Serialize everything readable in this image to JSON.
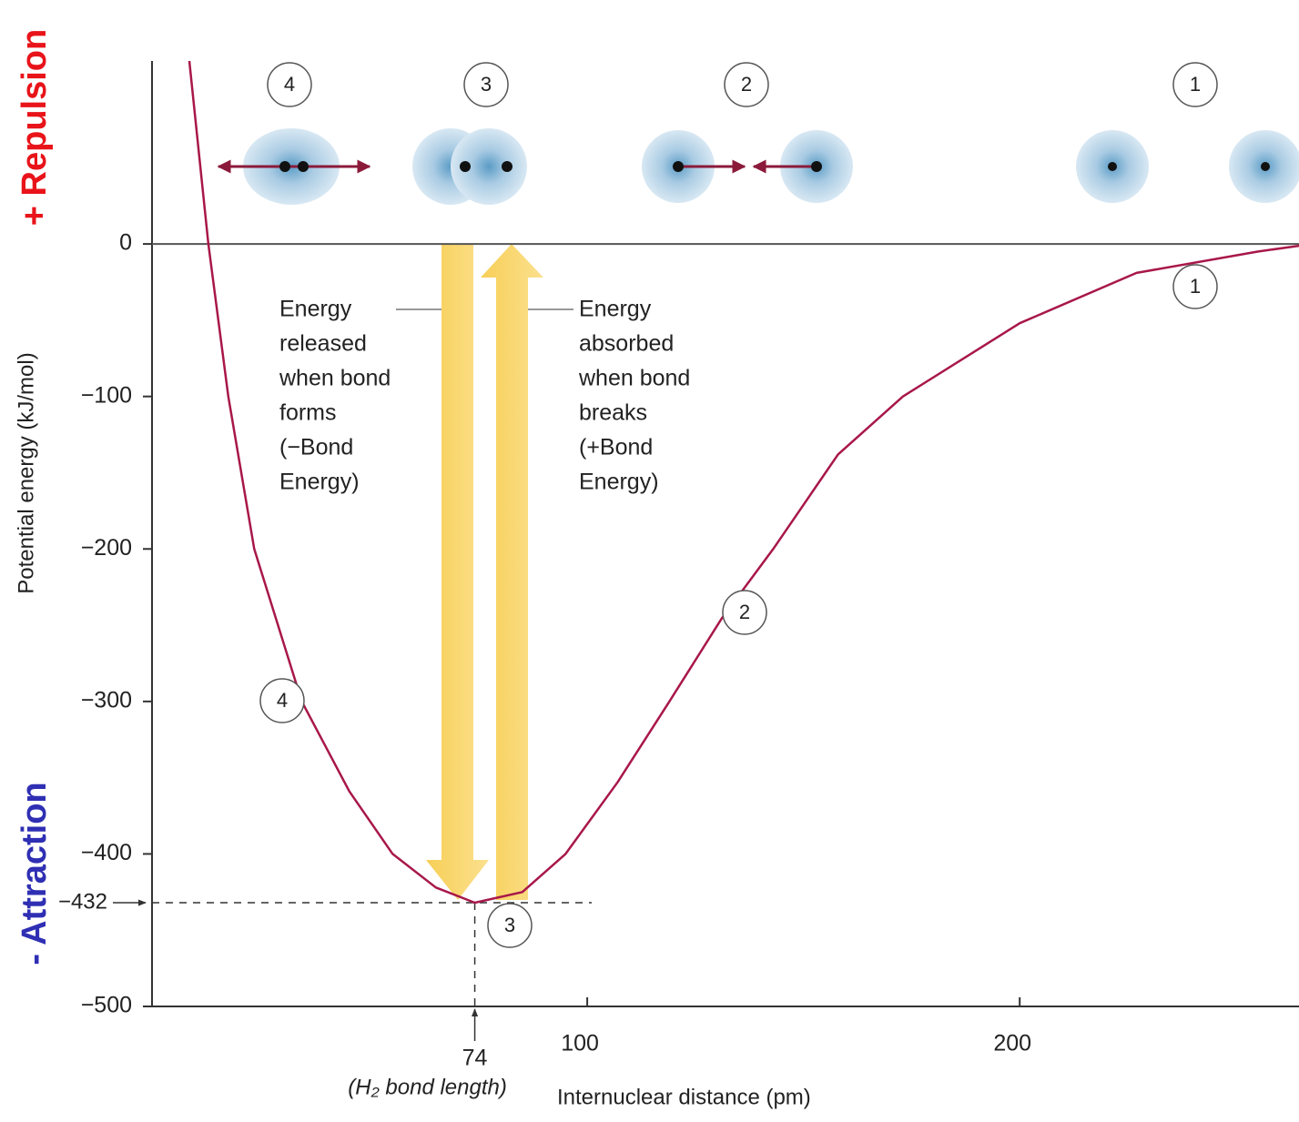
{
  "chart_data": {
    "type": "line",
    "x_label": "Internuclear distance (pm)",
    "y_label": "Potential energy (kJ/mol)",
    "x": [
      8,
      12.4,
      17,
      23,
      34,
      45,
      55,
      65,
      74,
      85,
      95,
      107,
      119,
      131,
      143,
      158,
      173,
      200,
      227,
      255,
      265
    ],
    "values": [
      120,
      0,
      -100,
      -200,
      -300,
      -359,
      -400,
      -422,
      -432,
      -425,
      -400,
      -353,
      -300,
      -246,
      -200,
      -138,
      -100,
      -52,
      -19,
      -5,
      -1
    ],
    "color": "#a8174a",
    "xlim": [
      0,
      265
    ],
    "ylim": [
      -500,
      120
    ],
    "xticks": [
      100,
      200
    ],
    "yticks": [
      0,
      {
        "value": -100,
        "label": "−100"
      },
      {
        "value": -200,
        "label": "−200"
      },
      {
        "value": -300,
        "label": "−300"
      },
      {
        "value": -400,
        "label": "−400"
      },
      {
        "value": -500,
        "label": "−500"
      }
    ],
    "minimum": {
      "x": {
        "value": 74,
        "label": "74"
      },
      "y": {
        "value": -432,
        "label": "−432"
      },
      "x_note": "(H₂ bond length)"
    },
    "grid": false,
    "side_labels": {
      "top": "+ Repulsion",
      "bottom": "- Attraction"
    },
    "stage_labels_top": [
      "4",
      "3",
      "2",
      "1"
    ],
    "stage_labels_curve": [
      "4",
      "3",
      "2",
      "1"
    ],
    "energy_released": [
      "Energy",
      "released",
      "when bond",
      "forms",
      "(−Bond",
      "Energy)"
    ],
    "energy_absorbed": [
      "Energy",
      "absorbed",
      "when bond",
      "breaks",
      "(+Bond",
      "Energy)"
    ]
  }
}
